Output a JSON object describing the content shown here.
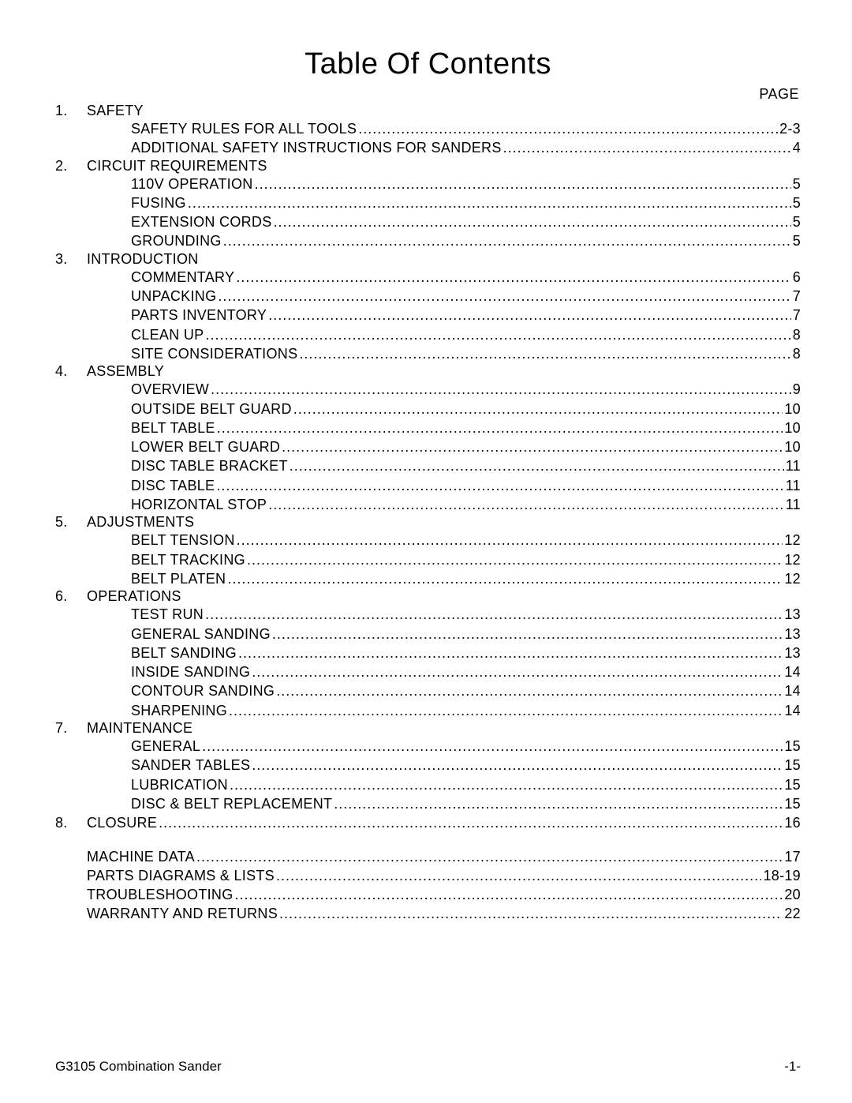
{
  "title": "Table Of Contents",
  "page_label": "PAGE",
  "style": {
    "text_color": "#000000",
    "background_color": "#ffffff",
    "title_fontsize": 38,
    "body_fontsize": 18,
    "footer_fontsize": 17,
    "font_family": "Arial"
  },
  "leader_char": ".",
  "sections": [
    {
      "num": "1.",
      "title": "SAFETY",
      "items": [
        {
          "label": "SAFETY RULES FOR ALL TOOLS ",
          "page": "2-3"
        },
        {
          "label": "ADDITIONAL SAFETY INSTRUCTIONS FOR SANDERS ",
          "page": "4"
        }
      ]
    },
    {
      "num": "2.",
      "title": "CIRCUIT REQUIREMENTS",
      "items": [
        {
          "label": "110V OPERATION ",
          "page": "5"
        },
        {
          "label": "FUSING ",
          "page": "5"
        },
        {
          "label": "EXTENSION CORDS ",
          "page": "5"
        },
        {
          "label": "GROUNDING ",
          "page": "5"
        }
      ]
    },
    {
      "num": "3.",
      "title": "INTRODUCTION",
      "items": [
        {
          "label": "COMMENTARY ",
          "page": "6"
        },
        {
          "label": "UNPACKING",
          "page": "7"
        },
        {
          "label": "PARTS INVENTORY ",
          "page": "7"
        },
        {
          "label": "CLEAN UP ",
          "page": "8"
        },
        {
          "label": "SITE CONSIDERATIONS ",
          "page": "8"
        }
      ]
    },
    {
      "num": "4.",
      "title": "ASSEMBLY",
      "items": [
        {
          "label": "OVERVIEW",
          "page": "9"
        },
        {
          "label": "OUTSIDE BELT GUARD ",
          "page": "10"
        },
        {
          "label": "BELT TABLE ",
          "page": "10"
        },
        {
          "label": "LOWER BELT GUARD",
          "page": "10"
        },
        {
          "label": "DISC TABLE BRACKET",
          "page": "11"
        },
        {
          "label": "DISC TABLE",
          "page": "11"
        },
        {
          "label": "HORIZONTAL STOP ",
          "page": "11"
        }
      ]
    },
    {
      "num": "5.",
      "title": "ADJUSTMENTS",
      "items": [
        {
          "label": "BELT TENSION ",
          "page": "12"
        },
        {
          "label": "BELT TRACKING ",
          "page": "12"
        },
        {
          "label": "BELT PLATEN ",
          "page": "12"
        }
      ]
    },
    {
      "num": "6.",
      "title": "OPERATIONS",
      "items": [
        {
          "label": "TEST RUN ",
          "page": "13"
        },
        {
          "label": "GENERAL SANDING ",
          "page": "13"
        },
        {
          "label": "BELT SANDING ",
          "page": "13"
        },
        {
          "label": "INSIDE SANDING ",
          "page": "14"
        },
        {
          "label": "CONTOUR SANDING ",
          "page": "14"
        },
        {
          "label": "SHARPENING ",
          "page": "14"
        }
      ]
    },
    {
      "num": "7.",
      "title": "MAINTENANCE",
      "items": [
        {
          "label": "GENERAL",
          "page": "15"
        },
        {
          "label": "SANDER TABLES ",
          "page": "15"
        },
        {
          "label": "LUBRICATION ",
          "page": "15"
        },
        {
          "label": "DISC & BELT REPLACEMENT ",
          "page": "15"
        }
      ]
    },
    {
      "num": "8.",
      "title": "CLOSURE ",
      "page": "16",
      "items": []
    }
  ],
  "appendix": [
    {
      "label": "MACHINE DATA ",
      "page": "17"
    },
    {
      "label": "PARTS DIAGRAMS & LISTS ",
      "page": "18-19"
    },
    {
      "label": "TROUBLESHOOTING ",
      "page": "20"
    },
    {
      "label": "WARRANTY AND RETURNS",
      "page": "22"
    }
  ],
  "footer": {
    "left": "G3105 Combination Sander",
    "right": "-1-"
  }
}
